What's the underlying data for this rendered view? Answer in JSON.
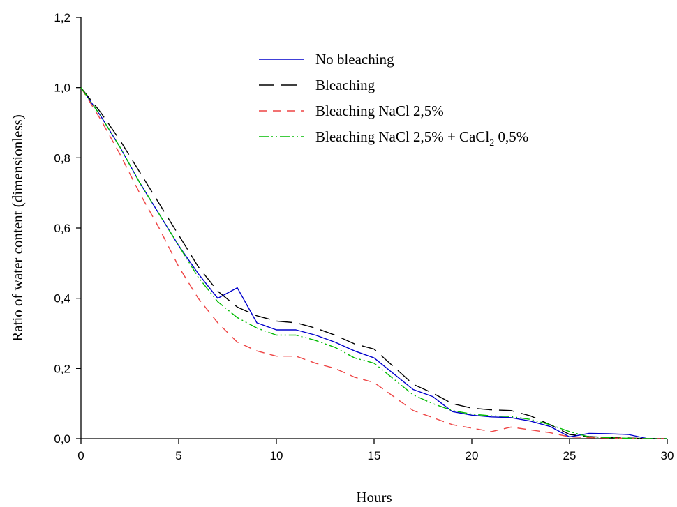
{
  "chart_data": {
    "type": "line",
    "xlabel": "Hours",
    "ylabel": "Ratio of water content (dimensionless)",
    "xlim": [
      0,
      30
    ],
    "ylim": [
      0,
      1.2
    ],
    "xticks": [
      "0",
      "5",
      "10",
      "15",
      "20",
      "25",
      "30"
    ],
    "yticks": [
      "0,0",
      "0,2",
      "0,4",
      "0,6",
      "0,8",
      "1,0",
      "1,2"
    ],
    "grid": false,
    "legend_position": "top-center",
    "legend": [
      {
        "text": "No bleaching",
        "sub": "",
        "after": ""
      },
      {
        "text": "Bleaching",
        "sub": "",
        "after": ""
      },
      {
        "text": "Bleaching NaCl 2,5%",
        "sub": "",
        "after": ""
      },
      {
        "text": "Bleaching NaCl 2,5% + CaCl",
        "sub": "2",
        "after": " 0,5%"
      }
    ],
    "series": [
      {
        "color": "#0000cc",
        "dash": "solid",
        "x": [
          0,
          1,
          2,
          3,
          4,
          5,
          6,
          7,
          8,
          9,
          10,
          11,
          12,
          13,
          14,
          15,
          16,
          17,
          18,
          19,
          20,
          21,
          22,
          23,
          24,
          25,
          26,
          27,
          28,
          29,
          30
        ],
        "y": [
          1.0,
          0.92,
          0.83,
          0.73,
          0.64,
          0.55,
          0.47,
          0.4,
          0.43,
          0.33,
          0.31,
          0.31,
          0.295,
          0.275,
          0.25,
          0.23,
          0.185,
          0.14,
          0.12,
          0.077,
          0.067,
          0.062,
          0.06,
          0.05,
          0.035,
          0.005,
          0.015,
          0.014,
          0.012,
          0.0,
          0.0
        ]
      },
      {
        "color": "#000000",
        "dash": "long-dash",
        "x": [
          0,
          1,
          2,
          3,
          4,
          5,
          6,
          7,
          8,
          9,
          10,
          11,
          12,
          13,
          14,
          15,
          16,
          17,
          18,
          19,
          20,
          21,
          22,
          23,
          24,
          25,
          26,
          27,
          28,
          29,
          30
        ],
        "y": [
          1.0,
          0.93,
          0.85,
          0.76,
          0.67,
          0.58,
          0.49,
          0.42,
          0.375,
          0.35,
          0.335,
          0.33,
          0.315,
          0.295,
          0.27,
          0.255,
          0.205,
          0.155,
          0.13,
          0.1,
          0.087,
          0.082,
          0.08,
          0.065,
          0.04,
          0.012,
          0.006,
          0.003,
          0.002,
          0.0,
          0.0
        ]
      },
      {
        "color": "#ee4444",
        "dash": "dash",
        "x": [
          0,
          1,
          2,
          3,
          4,
          5,
          6,
          7,
          8,
          9,
          10,
          11,
          12,
          13,
          14,
          15,
          16,
          17,
          18,
          19,
          20,
          21,
          22,
          23,
          24,
          25,
          26,
          27,
          28,
          29,
          30
        ],
        "y": [
          1.0,
          0.91,
          0.81,
          0.7,
          0.6,
          0.49,
          0.4,
          0.33,
          0.275,
          0.25,
          0.235,
          0.235,
          0.215,
          0.2,
          0.175,
          0.16,
          0.12,
          0.08,
          0.06,
          0.04,
          0.03,
          0.02,
          0.033,
          0.025,
          0.017,
          0.005,
          0.003,
          0.002,
          0.001,
          0.0,
          0.0
        ]
      },
      {
        "color": "#00bb00",
        "dash": "dash-dot-dot",
        "x": [
          0,
          1,
          2,
          3,
          4,
          5,
          6,
          7,
          8,
          9,
          10,
          11,
          12,
          13,
          14,
          15,
          16,
          17,
          18,
          19,
          20,
          21,
          22,
          23,
          24,
          25,
          26,
          27,
          28,
          29,
          30
        ],
        "y": [
          1.0,
          0.92,
          0.83,
          0.73,
          0.64,
          0.55,
          0.46,
          0.39,
          0.345,
          0.315,
          0.295,
          0.295,
          0.28,
          0.26,
          0.23,
          0.215,
          0.17,
          0.125,
          0.1,
          0.08,
          0.07,
          0.065,
          0.063,
          0.055,
          0.04,
          0.02,
          0.005,
          0.003,
          0.001,
          0.0,
          0.0
        ]
      }
    ]
  }
}
